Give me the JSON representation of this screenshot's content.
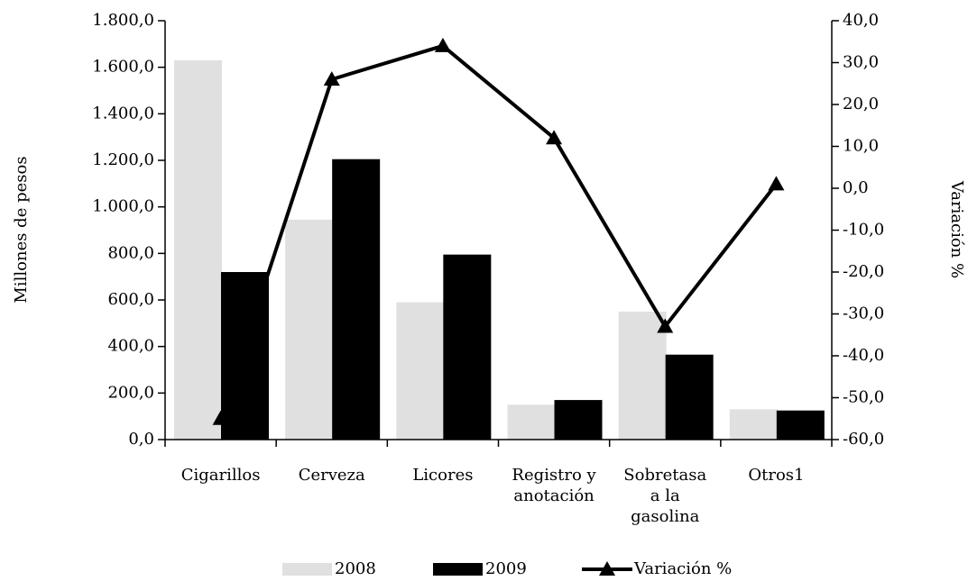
{
  "chart_data": {
    "type": "bar",
    "categories": [
      "Cigarillos",
      "Cerveza",
      "Licores",
      "Registro y anotación",
      "Sobretasa a la gasolina",
      "Otros1"
    ],
    "series": [
      {
        "name": "2008",
        "color": "#e0e0e0",
        "values": [
          1630,
          945,
          590,
          150,
          550,
          130
        ]
      },
      {
        "name": "2009",
        "color": "#000000",
        "values": [
          720,
          1205,
          795,
          170,
          365,
          125
        ]
      },
      {
        "name": "Variación %",
        "color": "#000000",
        "axis": "y2",
        "type": "line",
        "values": [
          -55,
          26,
          34,
          12,
          -33,
          1
        ]
      }
    ],
    "ylabel": "Millones de pesos",
    "y2label": "Variación %",
    "ylim": [
      0,
      1800
    ],
    "yticks": [
      {
        "value": 0,
        "label": "0,0"
      },
      {
        "value": 200,
        "label": "200,0"
      },
      {
        "value": 400,
        "label": "400,0"
      },
      {
        "value": 600,
        "label": "600,0"
      },
      {
        "value": 800,
        "label": "800,0"
      },
      {
        "value": 1000,
        "label": "1.000,0"
      },
      {
        "value": 1200,
        "label": "1.200,0"
      },
      {
        "value": 1400,
        "label": "1.400,0"
      },
      {
        "value": 1600,
        "label": "1.600,0"
      },
      {
        "value": 1800,
        "label": "1.800,0"
      }
    ],
    "y2lim": [
      -60,
      40
    ],
    "y2ticks": [
      {
        "value": -60,
        "label": "-60,0"
      },
      {
        "value": -50,
        "label": "-50,0"
      },
      {
        "value": -40,
        "label": "-40,0"
      },
      {
        "value": -30,
        "label": "-30,0"
      },
      {
        "value": -20,
        "label": "-20,0"
      },
      {
        "value": -10,
        "label": "-10,0"
      },
      {
        "value": 0,
        "label": "0,0"
      },
      {
        "value": 10,
        "label": "10,0"
      },
      {
        "value": 20,
        "label": "20,0"
      },
      {
        "value": 30,
        "label": "30,0"
      },
      {
        "value": 40,
        "label": "40,0"
      }
    ],
    "legend": "bottom"
  }
}
